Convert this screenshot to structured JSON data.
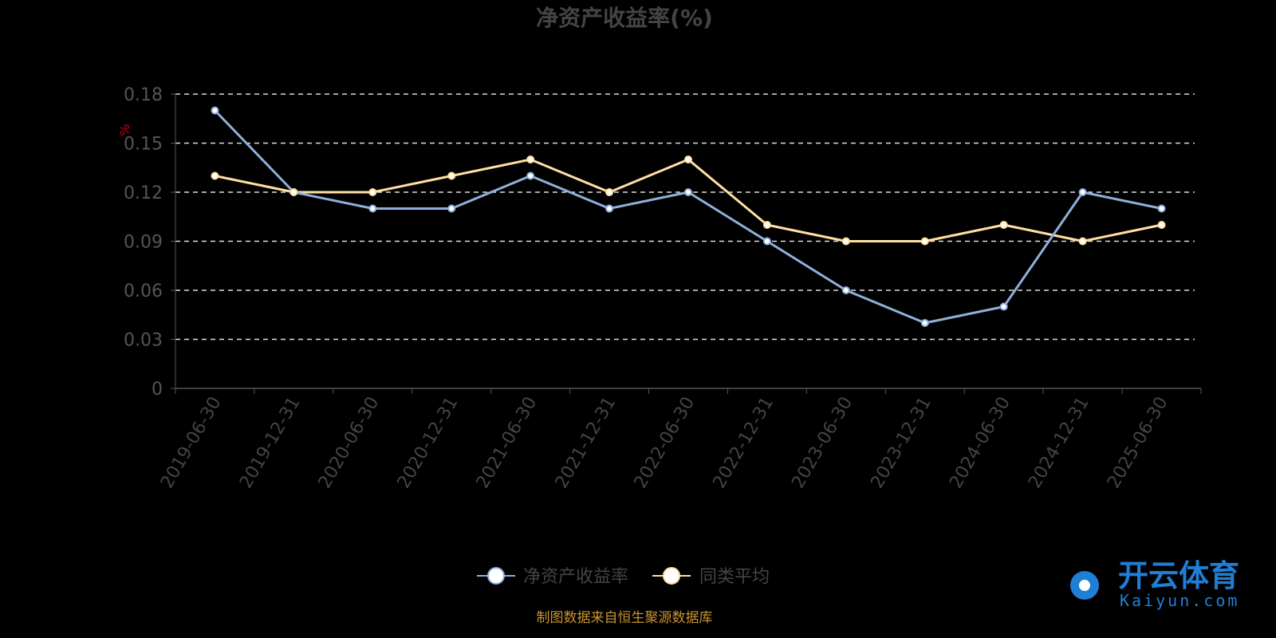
{
  "chart_data": {
    "type": "line",
    "title": "净资产收益率(%)",
    "y_unit_label": "%",
    "categories": [
      "2019-06-30",
      "2019-12-31",
      "2020-06-30",
      "2020-12-31",
      "2021-06-30",
      "2021-12-31",
      "2022-06-30",
      "2022-12-31",
      "2023-06-30",
      "2023-12-31",
      "2024-06-30",
      "2024-12-31",
      "2025-06-30"
    ],
    "series": [
      {
        "name": "净资产收益率",
        "color": "#8fb0dc",
        "values": [
          0.17,
          0.12,
          0.11,
          0.11,
          0.13,
          0.11,
          0.12,
          0.09,
          0.06,
          0.04,
          0.05,
          0.12,
          0.11
        ]
      },
      {
        "name": "同类平均",
        "color": "#ffe0a0",
        "values": [
          0.13,
          0.12,
          0.12,
          0.13,
          0.14,
          0.12,
          0.14,
          0.1,
          0.09,
          0.09,
          0.1,
          0.09,
          0.1
        ]
      }
    ],
    "ylim": [
      0,
      0.18
    ],
    "yticks": [
      "0",
      "0.03",
      "0.06",
      "0.09",
      "0.12",
      "0.15",
      "0.18"
    ],
    "grid": true,
    "legend_position": "bottom-center"
  },
  "source_note": "制图数据来自恒生聚源数据库",
  "watermark": {
    "brand_cn": "开云体育",
    "brand_en": "Kaiyun.com"
  }
}
